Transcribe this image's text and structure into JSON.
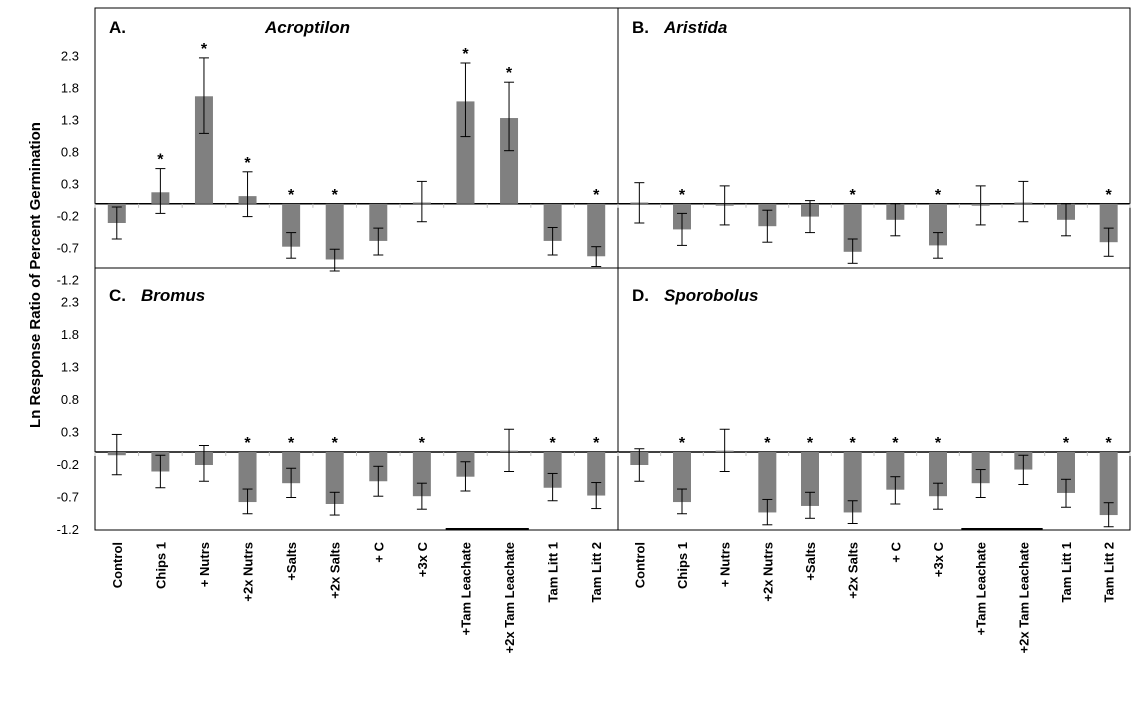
{
  "figure": {
    "ylabel": "Ln Response Ratio of Percent  Germination",
    "yticks": [
      "2.3",
      "1.8",
      "1.3",
      "0.8",
      "0.3",
      "-0.2",
      "-0.7",
      "-1.2"
    ],
    "categories": [
      "Control",
      "Chips 1",
      "+ Nutrs",
      "+2x Nutrs",
      "+Salts",
      "+2x Salts",
      "+ C",
      "+3x C",
      "+Tam Leachate",
      "+2x Tam Leachate",
      "Tam Litt 1",
      "Tam Litt 2"
    ],
    "colors": {
      "bar": "#808080",
      "axis": "#000000",
      "grid": "#bfbfbf"
    }
  },
  "chart_data": [
    {
      "type": "bar",
      "panel_letter": "A.",
      "title": "Acroptilon",
      "ylim": [
        -1.2,
        2.8
      ],
      "categories": [
        "Control",
        "Chips 1",
        "+ Nutrs",
        "+2x Nutrs",
        "+Salts",
        "+2x Salts",
        "+ C",
        "+3x C",
        "+Tam Leachate",
        "+2x Tam Leachate",
        "Tam Litt 1",
        "Tam Litt 2"
      ],
      "values": [
        -0.3,
        0.18,
        1.68,
        0.12,
        -0.67,
        -0.87,
        -0.58,
        0.02,
        1.6,
        1.34,
        -0.58,
        -0.82
      ],
      "error_low": [
        -0.55,
        -0.15,
        1.1,
        -0.2,
        -0.85,
        -1.05,
        -0.8,
        -0.28,
        1.05,
        0.83,
        -0.8,
        -0.98
      ],
      "error_high": [
        -0.05,
        0.55,
        2.28,
        0.5,
        -0.45,
        -0.71,
        -0.38,
        0.35,
        2.2,
        1.9,
        -0.37,
        -0.67
      ],
      "significant": [
        false,
        true,
        true,
        true,
        true,
        true,
        false,
        false,
        true,
        true,
        false,
        true
      ],
      "star": "*"
    },
    {
      "type": "bar",
      "panel_letter": "B.",
      "title": "Aristida",
      "ylim": [
        -1.2,
        2.8
      ],
      "categories": [
        "Control",
        "Chips 1",
        "+ Nutrs",
        "+2x Nutrs",
        "+Salts",
        "+2x Salts",
        "+ C",
        "+3x C",
        "+Tam Leachate",
        "+2x Tam Leachate",
        "Tam Litt 1",
        "Tam Litt 2"
      ],
      "values": [
        0.02,
        -0.4,
        -0.03,
        -0.35,
        -0.2,
        -0.75,
        -0.25,
        -0.65,
        -0.03,
        0.02,
        -0.25,
        -0.6
      ],
      "error_low": [
        -0.3,
        -0.65,
        -0.33,
        -0.6,
        -0.45,
        -0.93,
        -0.5,
        -0.85,
        -0.33,
        -0.28,
        -0.5,
        -0.82
      ],
      "error_high": [
        0.33,
        -0.15,
        0.28,
        -0.1,
        0.05,
        -0.55,
        0.0,
        -0.45,
        0.28,
        0.35,
        0.0,
        -0.38
      ],
      "significant": [
        false,
        true,
        false,
        false,
        false,
        true,
        false,
        true,
        false,
        false,
        false,
        true
      ],
      "star": "*"
    },
    {
      "type": "bar",
      "panel_letter": "C.",
      "title": "Bromus",
      "ylim": [
        -1.2,
        2.8
      ],
      "categories": [
        "Control",
        "Chips 1",
        "+ Nutrs",
        "+2x Nutrs",
        "+Salts",
        "+2x Salts",
        "+ C",
        "+3x C",
        "+Tam Leachate",
        "+2x Tam Leachate",
        "Tam Litt 1",
        "Tam Litt 2"
      ],
      "values": [
        -0.05,
        -0.3,
        -0.2,
        -0.77,
        -0.48,
        -0.8,
        -0.45,
        -0.68,
        -0.38,
        0.02,
        -0.55,
        -0.67
      ],
      "error_low": [
        -0.35,
        -0.55,
        -0.45,
        -0.95,
        -0.7,
        -0.97,
        -0.68,
        -0.88,
        -0.6,
        -0.3,
        -0.75,
        -0.87
      ],
      "error_high": [
        0.27,
        -0.05,
        0.1,
        -0.57,
        -0.25,
        -0.62,
        -0.22,
        -0.48,
        -0.15,
        0.35,
        -0.33,
        -0.47
      ],
      "significant": [
        false,
        false,
        false,
        true,
        true,
        true,
        false,
        true,
        false,
        false,
        true,
        true
      ],
      "star": "*"
    },
    {
      "type": "bar",
      "panel_letter": "D.",
      "title": "Sporobolus",
      "ylim": [
        -1.2,
        2.8
      ],
      "categories": [
        "Control",
        "Chips 1",
        "+ Nutrs",
        "+2x Nutrs",
        "+Salts",
        "+2x Salts",
        "+ C",
        "+3x C",
        "+Tam Leachate",
        "+2x Tam Leachate",
        "Tam Litt 1",
        "Tam Litt 2"
      ],
      "values": [
        -0.2,
        -0.77,
        0.02,
        -0.93,
        -0.83,
        -0.93,
        -0.58,
        -0.68,
        -0.48,
        -0.27,
        -0.63,
        -0.97
      ],
      "error_low": [
        -0.45,
        -0.95,
        -0.3,
        -1.12,
        -1.02,
        -1.1,
        -0.8,
        -0.88,
        -0.7,
        -0.5,
        -0.85,
        -1.15
      ],
      "error_high": [
        0.05,
        -0.57,
        0.35,
        -0.73,
        -0.62,
        -0.75,
        -0.38,
        -0.48,
        -0.27,
        -0.05,
        -0.42,
        -0.78
      ],
      "significant": [
        false,
        true,
        false,
        true,
        true,
        true,
        true,
        true,
        false,
        false,
        true,
        true
      ],
      "star": "*"
    }
  ]
}
